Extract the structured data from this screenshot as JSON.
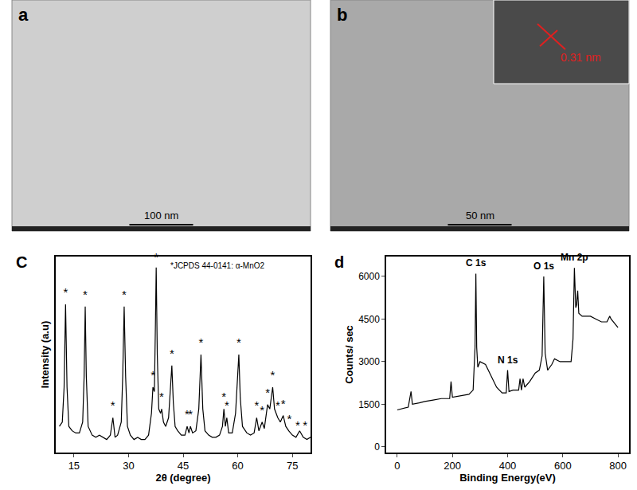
{
  "panels": [
    {
      "label": "a",
      "type": "image",
      "scale_bar": "100 nm"
    },
    {
      "label": "b",
      "type": "image",
      "scale_bar": "50 nm",
      "inset": "0.31 nm"
    }
  ],
  "chart_data": [
    {
      "label": "C",
      "type": "line",
      "color": "#000000",
      "grid": false,
      "tick_labels": "x",
      "annotation": "*JCPDS 44-0141: α-MnO2",
      "x_label": "2θ (degree)",
      "y_label": "Intensity (a.u)",
      "xlim": [
        10,
        80
      ],
      "xticks": [
        15,
        30,
        45,
        60,
        75
      ],
      "ylim": [
        10,
        100
      ],
      "x": [
        11,
        11.8,
        12.3,
        12.7,
        13.1,
        13.6,
        14.5,
        15.5,
        16.5,
        17.4,
        17.8,
        18.1,
        18.4,
        18.9,
        20,
        21,
        22,
        23,
        24,
        25,
        25.7,
        26.3,
        27,
        28,
        28.4,
        28.8,
        29.2,
        29.7,
        30.5,
        31.5,
        32.5,
        33.5,
        34.5,
        35.5,
        36.3,
        36.7,
        37.1,
        37.4,
        37.6,
        37.9,
        38.3,
        38.8,
        39.1,
        39.6,
        40.2,
        41,
        41.5,
        41.9,
        42.3,
        42.8,
        43.5,
        44.5,
        45.5,
        46.1,
        46.6,
        47.0,
        47.6,
        48.5,
        49.3,
        49.9,
        50.4,
        51,
        52,
        53,
        54,
        55,
        55.8,
        56.2,
        56.6,
        57,
        57.5,
        58.5,
        59.4,
        60.0,
        60.3,
        60.7,
        61.3,
        62.5,
        63.5,
        64.5,
        65.2,
        65.8,
        66.7,
        67.3,
        68.2,
        68.8,
        69.6,
        70.1,
        71,
        71.7,
        72.5,
        73.2,
        74,
        75,
        76,
        77,
        78,
        79,
        80
      ],
      "values": [
        22,
        24,
        40,
        78,
        40,
        22,
        20,
        19,
        19,
        24,
        45,
        77,
        45,
        22,
        18,
        17,
        18,
        17,
        16,
        18,
        26,
        17,
        18,
        24,
        45,
        77,
        45,
        22,
        18,
        16,
        17,
        16,
        16,
        18,
        28,
        40,
        38,
        70,
        95,
        55,
        30,
        28,
        30,
        24,
        22,
        26,
        38,
        50,
        33,
        22,
        20,
        18,
        18,
        22,
        19,
        22,
        19,
        20,
        30,
        55,
        30,
        20,
        18,
        17,
        17,
        18,
        22,
        30,
        22,
        26,
        19,
        19,
        28,
        48,
        55,
        35,
        22,
        19,
        18,
        19,
        26,
        20,
        24,
        21,
        32,
        30,
        40,
        30,
        26,
        24,
        27,
        22,
        20,
        18,
        17,
        20,
        17,
        16,
        17
      ],
      "marks": {
        "text": "*",
        "x": [
          12.7,
          18.1,
          25.7,
          28.8,
          36.7,
          37.6,
          39.1,
          41.9,
          46.1,
          47.0,
          49.9,
          56.2,
          57.0,
          60.3,
          65.2,
          66.7,
          68.2,
          69.6,
          71.0,
          72.5,
          74.2,
          76.5,
          78.5
        ],
        "y": [
          83,
          82,
          31,
          82,
          45,
          99,
          35,
          55,
          27,
          27,
          60,
          35,
          31,
          60,
          31,
          29,
          37,
          45,
          31,
          32,
          25,
          22,
          22
        ]
      }
    },
    {
      "label": "d",
      "type": "line",
      "color": "#000000",
      "grid": false,
      "x_label": "Binding Energy(eV)",
      "y_label": "Counts/ sec",
      "xlim": [
        -40,
        840
      ],
      "xticks": [
        0,
        200,
        400,
        600,
        800
      ],
      "ylim": [
        -200,
        6700
      ],
      "yticks": [
        0,
        1500,
        3000,
        4500,
        6000
      ],
      "x": [
        0,
        20,
        40,
        50,
        55,
        80,
        100,
        130,
        160,
        190,
        195,
        200,
        230,
        260,
        275,
        282,
        285,
        288,
        292,
        300,
        320,
        340,
        360,
        380,
        395,
        400,
        405,
        420,
        440,
        445,
        450,
        456,
        462,
        480,
        500,
        515,
        525,
        531,
        536,
        545,
        560,
        570,
        590,
        610,
        630,
        637,
        642,
        647,
        650,
        654,
        658,
        670,
        700,
        720,
        740,
        760,
        770,
        775,
        790,
        800
      ],
      "values": [
        1300,
        1350,
        1400,
        1950,
        1500,
        1550,
        1600,
        1650,
        1700,
        1700,
        2300,
        1750,
        1800,
        1850,
        2000,
        3500,
        6100,
        3500,
        2800,
        3000,
        2900,
        2500,
        2100,
        1900,
        1900,
        2700,
        1950,
        2000,
        2000,
        2400,
        2000,
        2400,
        2100,
        2300,
        2600,
        2700,
        3200,
        6000,
        3300,
        2700,
        2900,
        3100,
        3000,
        3000,
        3000,
        3800,
        6300,
        4900,
        5000,
        5500,
        4700,
        4600,
        4600,
        4500,
        4400,
        4400,
        4600,
        4500,
        4300,
        4200
      ],
      "annotations": [
        {
          "text": "C 1s",
          "x": 285,
          "y": 6100
        },
        {
          "text": "N 1s",
          "x": 400,
          "y": 2700
        },
        {
          "text": "O 1s",
          "x": 531,
          "y": 6000
        },
        {
          "text": "Mn 2p",
          "x": 642,
          "y": 6300
        }
      ]
    }
  ]
}
